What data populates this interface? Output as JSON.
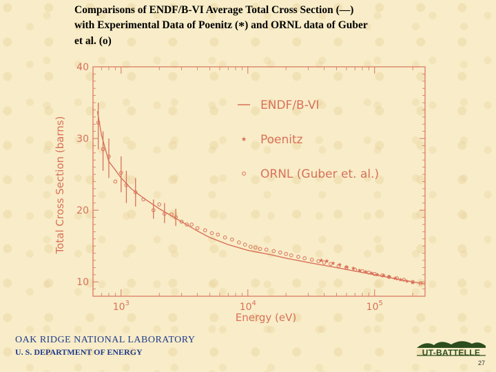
{
  "title": {
    "line1": "Comparisons of ENDF/B-VI Average Total Cross Section (—)",
    "line2_a": "with Experimental Data of Poenitz (",
    "line2_glyph": "*",
    "line2_b": ") and ORNL data of Guber",
    "line3": "et al. (o)"
  },
  "footer": {
    "org": "OAK RIDGE NATIONAL LABORATORY",
    "dept": "U. S. DEPARTMENT OF ENERGY",
    "logo_text": "UT-BATTELLE",
    "page_number": "27"
  },
  "colors": {
    "plot": "#d9705a",
    "ink": "#000000",
    "footer": "#1f3a8c",
    "logo": "#2c4d1e"
  },
  "chart_data": {
    "type": "scatter",
    "xscale": "log",
    "xlim": [
      600,
      250000
    ],
    "ylim": [
      8,
      40
    ],
    "xlabel": "Energy (eV)",
    "ylabel": "Total Cross Section (barns)",
    "x_ticks": [
      {
        "value": 1000,
        "base": "10",
        "exp": "3"
      },
      {
        "value": 10000,
        "base": "10",
        "exp": "4"
      },
      {
        "value": 100000,
        "base": "10",
        "exp": "5"
      }
    ],
    "y_ticks": [
      {
        "value": 10,
        "label": "10"
      },
      {
        "value": 20,
        "label": "20"
      },
      {
        "value": 30,
        "label": "30"
      },
      {
        "value": 40,
        "label": "40"
      }
    ],
    "legend_placement": "top-right",
    "legend": [
      {
        "key": "endf",
        "label": "ENDF/B-VI",
        "marker": "line"
      },
      {
        "key": "poenitz",
        "label": "Poenitz",
        "marker": "star"
      },
      {
        "key": "ornl",
        "label": "ORNL (Guber et. al.)",
        "marker": "circle"
      }
    ],
    "series": [
      {
        "key": "endf",
        "name": "ENDF/B-VI",
        "kind": "line",
        "x": [
          650,
          700,
          800,
          900,
          1000,
          1200,
          1500,
          2000,
          2500,
          3000,
          4000,
          5000,
          7000,
          10000,
          15000,
          20000,
          30000,
          50000,
          70000,
          100000,
          150000,
          200000,
          250000
        ],
        "y": [
          33.8,
          30.5,
          26.8,
          25.6,
          24.5,
          23.0,
          21.7,
          20.2,
          19.2,
          18.4,
          17.1,
          16.2,
          15.2,
          14.4,
          13.8,
          13.3,
          12.7,
          12.0,
          11.5,
          11.0,
          10.4,
          10.0,
          9.7
        ]
      },
      {
        "key": "ornl",
        "name": "ORNL (Guber et. al.)",
        "kind": "circle",
        "x": [
          660,
          720,
          800,
          900,
          1000,
          1100,
          1300,
          1500,
          1800,
          2000,
          2200,
          2500,
          2700,
          3000,
          3300,
          3600,
          4000,
          4600,
          5200,
          5800,
          6600,
          7500,
          8500,
          9500,
          10500,
          11500,
          12500,
          14000,
          16000,
          18000,
          20000,
          22000,
          25000,
          28000,
          32000,
          36000,
          40000,
          45000,
          52000,
          60000,
          70000,
          80000,
          90000,
          100000,
          115000,
          130000,
          150000,
          170000,
          200000,
          230000
        ],
        "y": [
          32.2,
          28.5,
          27.5,
          24.0,
          25.2,
          23.5,
          22.5,
          21.5,
          20.0,
          20.8,
          19.5,
          19.4,
          19.0,
          18.4,
          18.0,
          18.0,
          17.5,
          17.2,
          16.8,
          16.6,
          16.2,
          15.9,
          15.5,
          15.2,
          14.9,
          14.8,
          14.6,
          14.5,
          14.3,
          14.1,
          13.9,
          13.7,
          13.5,
          13.3,
          13.1,
          12.9,
          12.7,
          12.5,
          12.2,
          12.0,
          11.7,
          11.5,
          11.3,
          11.1,
          10.9,
          10.7,
          10.5,
          10.3,
          10.0,
          9.8
        ]
      },
      {
        "key": "poenitz",
        "name": "Poenitz",
        "kind": "star",
        "x": [
          38000,
          42000,
          47000,
          53000,
          60000,
          68000,
          76000,
          85000,
          95000,
          105000,
          118000,
          130000,
          145000,
          160000,
          180000,
          200000
        ],
        "y": [
          13.0,
          12.9,
          12.6,
          12.4,
          12.1,
          11.9,
          11.6,
          11.4,
          11.2,
          11.0,
          10.9,
          10.7,
          10.5,
          10.3,
          10.1,
          9.9
        ]
      }
    ],
    "error_bars": [
      {
        "x": 660,
        "low": 28.5,
        "high": 35.0
      },
      {
        "x": 720,
        "low": 25.5,
        "high": 31.0
      },
      {
        "x": 800,
        "low": 24.5,
        "high": 30.0
      },
      {
        "x": 1000,
        "low": 22.5,
        "high": 27.5
      },
      {
        "x": 1100,
        "low": 21.0,
        "high": 25.5
      },
      {
        "x": 1300,
        "low": 20.5,
        "high": 24.5
      },
      {
        "x": 1800,
        "low": 18.8,
        "high": 21.5
      },
      {
        "x": 2200,
        "low": 18.2,
        "high": 21.0
      },
      {
        "x": 2700,
        "low": 17.8,
        "high": 20.2
      }
    ]
  }
}
